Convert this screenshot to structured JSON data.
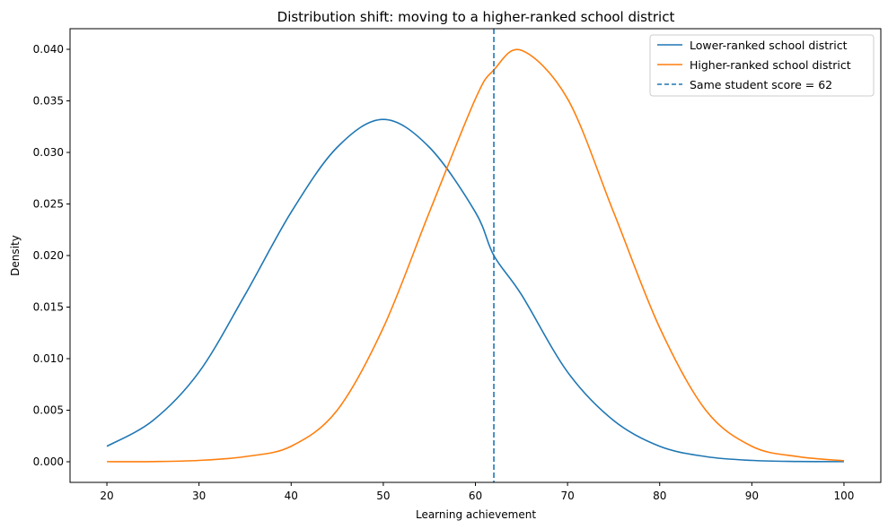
{
  "chart_data": {
    "type": "line",
    "title": "Distribution shift: moving to a higher-ranked school district",
    "xlabel": "Learning achievement",
    "ylabel": "Density",
    "xlim": [
      16,
      104
    ],
    "ylim": [
      -0.002,
      0.042
    ],
    "xticks": [
      20,
      30,
      40,
      50,
      60,
      70,
      80,
      90,
      100
    ],
    "yticks": [
      0.0,
      0.005,
      0.01,
      0.015,
      0.02,
      0.025,
      0.03,
      0.035,
      0.04
    ],
    "xtick_labels": [
      "20",
      "30",
      "40",
      "50",
      "60",
      "70",
      "80",
      "90",
      "100"
    ],
    "ytick_labels": [
      "0.000",
      "0.005",
      "0.010",
      "0.015",
      "0.020",
      "0.025",
      "0.030",
      "0.035",
      "0.040"
    ],
    "grid": false,
    "legend_position": "top-right",
    "series": [
      {
        "name": "Lower-ranked school district",
        "color": "#1f77b4",
        "style": "solid",
        "x": [
          20,
          25,
          30,
          35,
          40,
          45,
          50,
          55,
          60,
          62,
          65,
          70,
          75,
          80,
          85,
          90,
          95,
          100
        ],
        "y": [
          0.0015,
          0.004,
          0.0087,
          0.0162,
          0.0242,
          0.0305,
          0.0332,
          0.0305,
          0.0242,
          0.02,
          0.0162,
          0.0087,
          0.004,
          0.0015,
          0.0005,
          0.00013,
          3e-05,
          1e-05
        ]
      },
      {
        "name": "Higher-ranked school district",
        "color": "#ff7f0e",
        "style": "solid",
        "x": [
          20,
          25,
          30,
          35,
          40,
          45,
          50,
          55,
          60,
          62,
          65,
          70,
          75,
          80,
          85,
          90,
          95,
          100
        ],
        "y": [
          1e-05,
          2e-05,
          0.00013,
          0.0005,
          0.0015,
          0.005,
          0.013,
          0.0242,
          0.0352,
          0.038,
          0.0399,
          0.0352,
          0.0242,
          0.013,
          0.005,
          0.0015,
          0.0005,
          0.0001
        ]
      },
      {
        "name": "Same student score = 62",
        "color": "#1f77b4",
        "style": "dashed",
        "vline": 62
      }
    ]
  }
}
